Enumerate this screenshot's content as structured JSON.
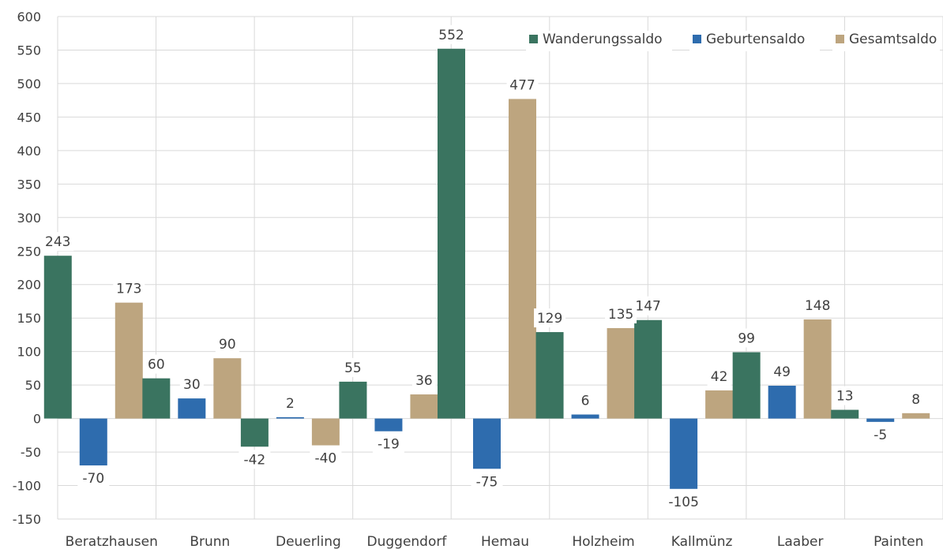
{
  "chart_data": {
    "type": "bar",
    "categories": [
      "Beratzhausen",
      "Brunn",
      "Deuerling",
      "Duggendorf",
      "Hemau",
      "Holzheim",
      "Kallmünz",
      "Laaber",
      "Painten"
    ],
    "series": [
      {
        "name": "Wanderungssaldo",
        "color": "#3a7460",
        "values": [
          243,
          60,
          -42,
          55,
          552,
          129,
          147,
          99,
          13
        ]
      },
      {
        "name": "Geburtensaldo",
        "color": "#2e6cae",
        "values": [
          -70,
          30,
          2,
          -19,
          -75,
          6,
          -105,
          49,
          -5
        ]
      },
      {
        "name": "Gesamtsaldo",
        "color": "#bda57f",
        "values": [
          173,
          90,
          -40,
          36,
          477,
          135,
          42,
          148,
          8
        ]
      }
    ],
    "ylim": [
      -150,
      600
    ],
    "yticks": [
      -150,
      -100,
      -50,
      0,
      50,
      100,
      150,
      200,
      250,
      300,
      350,
      400,
      450,
      500,
      550,
      600
    ],
    "grid": true,
    "legend_position": "top-right",
    "title": "",
    "xlabel": "",
    "ylabel": ""
  }
}
